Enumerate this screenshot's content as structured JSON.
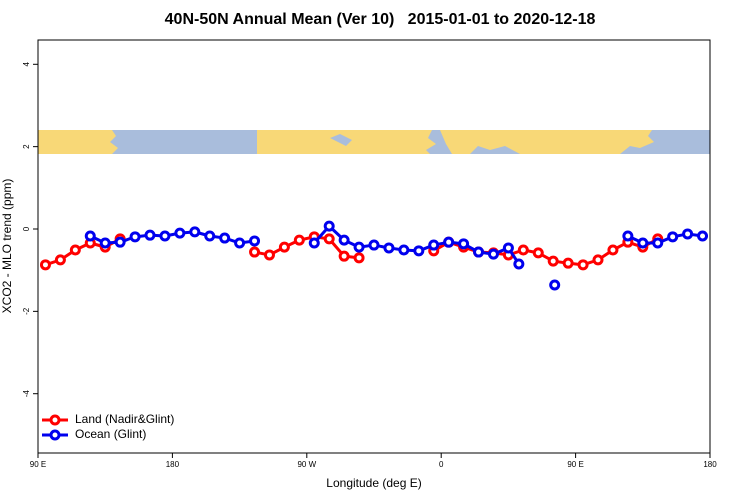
{
  "chart_data": {
    "type": "line",
    "title": "40N-50N Annual Mean (Ver 10)   2015-01-01 to 2020-12-18",
    "x_label": "Longitude (deg E)",
    "y_label": "XCO2 - MLO trend (ppm)",
    "xlim": [
      90,
      540
    ],
    "ylim": [
      -5.44,
      4.59
    ],
    "xticks": [
      {
        "value": 90,
        "label": "90 E"
      },
      180,
      {
        "value": 270,
        "label": "90 W"
      },
      {
        "value": 360,
        "label": "0"
      },
      {
        "value": 450,
        "label": "90 E"
      },
      {
        "value": 540,
        "label": "180"
      }
    ],
    "yticks": [
      -4,
      -2,
      0,
      2,
      4
    ],
    "legend": "bottomleft",
    "series": [
      {
        "name": "Land (Nadir&Glint)",
        "color": "#ff0000",
        "x": [
          95,
          105,
          115,
          125,
          135,
          145,
          155,
          235,
          245,
          255,
          265,
          275,
          285,
          295,
          305,
          315,
          355,
          365,
          375,
          385,
          395,
          405,
          415,
          425,
          435,
          445,
          455,
          465,
          475,
          485,
          495,
          505
        ],
        "values": [
          -0.87,
          -0.75,
          -0.51,
          -0.34,
          -0.44,
          -0.24,
          null,
          -0.56,
          -0.63,
          -0.44,
          -0.27,
          -0.19,
          -0.24,
          -0.66,
          -0.7,
          null,
          -0.53,
          -0.32,
          -0.44,
          -0.56,
          -0.58,
          -0.63,
          -0.51,
          -0.58,
          -0.78,
          -0.83,
          -0.87,
          -0.75,
          -0.51,
          -0.32,
          -0.44,
          -0.24
        ]
      },
      {
        "name": "Ocean (Glint)",
        "color": "#0000ee",
        "x": [
          125,
          135,
          145,
          155,
          165,
          175,
          185,
          195,
          205,
          215,
          225,
          235,
          245,
          275,
          285,
          295,
          305,
          315,
          325,
          335,
          345,
          355,
          365,
          375,
          385,
          395,
          405,
          412,
          425,
          436,
          465,
          485,
          495,
          505,
          515,
          525,
          535
        ],
        "values": [
          -0.17,
          -0.34,
          -0.32,
          -0.19,
          -0.15,
          -0.17,
          -0.1,
          -0.07,
          -0.17,
          -0.22,
          -0.34,
          -0.29,
          null,
          -0.34,
          0.07,
          -0.27,
          -0.44,
          -0.39,
          -0.46,
          -0.51,
          -0.53,
          -0.39,
          -0.32,
          -0.36,
          -0.56,
          -0.61,
          -0.46,
          -0.85,
          null,
          -1.36,
          null,
          -0.17,
          -0.34,
          -0.34,
          -0.19,
          -0.12,
          -0.17
        ]
      }
    ]
  }
}
